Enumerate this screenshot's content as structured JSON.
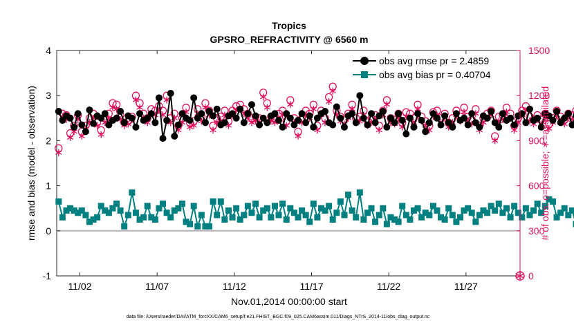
{
  "chart_data": {
    "type": "line",
    "title": "Tropics",
    "subtitle": "GPSRO_REFRACTIVITY @ 6560 m",
    "xlabel": "Nov.01,2014 00:00:00 start",
    "ylabel_left": "rmse and bias (model - observation)",
    "ylabel_right": "# of obs: o=possible; ∗=assimilated",
    "ylim_left": [
      -1,
      4
    ],
    "ylim_right": [
      0,
      1500
    ],
    "yticks_left": [
      "-1",
      "0",
      "1",
      "2",
      "3",
      "4"
    ],
    "yticks_right": [
      "0",
      "300",
      "600",
      "900",
      "1200",
      "1500"
    ],
    "xlim_days": [
      0.5,
      30.5
    ],
    "xticks": [
      {
        "day": 2,
        "label": "11/02"
      },
      {
        "day": 7,
        "label": "11/07"
      },
      {
        "day": 12,
        "label": "11/12"
      },
      {
        "day": 17,
        "label": "11/17"
      },
      {
        "day": 22,
        "label": "11/22"
      },
      {
        "day": 27,
        "label": "11/27"
      }
    ],
    "legend": [
      {
        "name": "obs avg rmse pr = 2.4859",
        "color": "#000000"
      },
      {
        "name": "obs avg bias pr = 0.40704",
        "color": "#008080"
      }
    ],
    "legend_position": "top-right",
    "colors": {
      "rmse": "#000000",
      "bias": "#008080",
      "obs": "#e0115f",
      "zero": "#b4b4b4"
    },
    "series": [
      {
        "name": "rmse",
        "values": [
          2.65,
          2.45,
          2.55,
          2.5,
          2.3,
          2.6,
          2.35,
          2.2,
          2.68,
          2.38,
          2.55,
          2.5,
          2.6,
          2.35,
          2.45,
          2.5,
          2.65,
          2.4,
          2.55,
          2.5,
          2.3,
          2.6,
          2.45,
          2.5,
          2.6,
          2.4,
          2.95,
          2.05,
          2.45,
          3.05,
          2.1,
          2.35,
          2.6,
          2.5,
          2.45,
          2.95,
          2.5,
          2.6,
          2.4,
          2.65,
          2.55,
          2.7,
          2.35,
          2.4,
          2.55,
          2.6,
          2.5,
          2.7,
          2.4,
          2.6,
          2.8,
          2.55,
          2.35,
          2.5,
          2.4,
          2.55,
          2.6,
          2.45,
          2.3,
          2.6,
          2.5,
          2.35,
          2.45,
          2.6,
          2.4,
          2.55,
          2.3,
          2.5,
          2.6,
          2.65,
          2.4,
          2.35,
          2.75,
          2.5,
          2.3,
          2.55,
          2.6,
          2.4,
          3.0,
          2.5,
          2.35,
          2.6,
          2.4,
          2.55,
          2.65,
          2.3,
          2.5,
          2.4,
          2.6,
          2.45,
          2.15,
          2.5,
          2.3,
          2.6,
          2.45,
          2.2,
          2.4,
          2.6,
          2.5,
          2.35,
          2.55,
          2.4,
          2.3,
          2.6,
          2.45,
          2.5,
          2.35,
          2.6,
          2.4,
          2.3,
          2.55,
          2.5,
          2.65,
          2.4,
          2.3,
          2.6,
          2.45,
          2.5,
          2.35,
          2.55,
          2.6,
          2.4,
          2.7,
          2.45,
          2.5,
          2.3,
          2.6,
          2.55,
          2.45,
          2.65,
          2.4,
          2.5,
          2.6,
          2.35,
          2.55,
          2.45,
          2.6,
          2.7,
          2.5,
          2.4,
          2.55,
          2.6,
          2.35,
          2.5,
          2.65,
          2.45,
          2.85,
          2.3,
          2.55,
          2.6,
          2.4,
          2.5,
          2.7,
          2.45,
          2.8,
          2.75,
          2.6,
          2.3,
          2.5,
          2.4,
          2.55,
          2.35,
          2.6,
          2.45,
          2.5,
          2.65,
          2.85,
          2.5,
          2.45,
          2.6,
          2.35,
          2.55,
          2.4,
          2.5,
          2.6,
          2.75,
          2.65,
          2.45,
          2.55,
          2.35,
          2.5,
          2.6,
          2.4,
          2.3,
          2.55,
          2.5,
          2.35,
          2.6,
          2.75,
          2.5,
          2.65,
          2.4,
          2.7,
          2.5,
          2.75,
          2.6,
          2.55,
          2.45,
          2.5,
          2.65,
          2.4,
          2.6,
          2.6,
          2.55,
          2.5,
          2.65,
          2.6,
          2.5,
          2.6,
          2.6,
          2.55,
          2.6,
          2.6,
          2.6,
          2.6,
          2.6,
          2.6,
          2.6
        ]
      },
      {
        "name": "bias",
        "values": [
          0.65,
          0.3,
          0.45,
          0.5,
          0.45,
          0.4,
          0.45,
          0.35,
          0.2,
          0.25,
          0.3,
          0.55,
          0.45,
          0.4,
          0.5,
          0.6,
          0.45,
          0.1,
          0.35,
          0.85,
          0.4,
          0.25,
          0.3,
          0.55,
          0.3,
          0.25,
          0.5,
          0.6,
          0.4,
          0.3,
          0.45,
          0.5,
          0.6,
          0.2,
          0.15,
          0.55,
          0.1,
          0.35,
          0.1,
          0.1,
          0.65,
          0.35,
          0.65,
          0.25,
          0.45,
          0.3,
          0.5,
          0.25,
          0.35,
          0.55,
          0.4,
          0.6,
          0.3,
          0.45,
          0.5,
          0.3,
          0.55,
          0.35,
          0.6,
          0.25,
          0.5,
          0.4,
          0.3,
          0.45,
          0.35,
          0.2,
          0.6,
          0.3,
          0.5,
          0.45,
          0.55,
          0.25,
          0.4,
          0.65,
          0.35,
          0.8,
          0.45,
          0.3,
          0.85,
          0.25,
          0.4,
          0.5,
          0.2,
          0.35,
          0.5,
          0.15,
          0.3,
          0.25,
          0.2,
          0.55,
          0.35,
          0.25,
          0.45,
          0.5,
          0.3,
          0.4,
          0.35,
          0.55,
          0.45,
          0.3,
          0.25,
          0.5,
          0.35,
          0.2,
          0.3,
          0.45,
          0.5,
          0.4,
          0.2,
          0.35,
          0.45,
          0.4,
          0.55,
          0.45,
          0.6,
          0.4,
          0.5,
          0.3,
          0.55,
          0.4,
          0.3,
          0.5,
          0.35,
          0.45,
          0.6,
          0.4,
          0.55,
          0.7,
          0.65,
          0.3,
          0.4,
          0.5,
          0.35,
          0.45,
          0.15,
          0.25,
          0.3,
          0.5,
          0.2,
          0.35,
          0.4,
          0.45,
          0.55,
          0.3,
          0.5,
          0.4,
          0.55,
          0.45,
          0.5,
          0.3,
          0.6,
          0.25,
          0.4,
          0.35,
          0.5,
          0.55,
          1.15,
          0.55,
          0.4,
          0.3,
          0.45,
          0.5,
          0.35,
          0.55,
          0.4,
          0.3,
          0.45,
          0.5,
          0.35,
          0.2,
          0.45,
          0.4,
          0.2,
          -0.05,
          0.3,
          0.45,
          0.35,
          0.55,
          0.3,
          0.45,
          0.55,
          0.25,
          0.5,
          0.4,
          0.35,
          0.45,
          0.55,
          0.3,
          0.4,
          0.5,
          0.35,
          0.45,
          0.35,
          0.35,
          0.3,
          0.4,
          0.35,
          0.4,
          0.35,
          0.3,
          0.35,
          0.4,
          0.35,
          0.3,
          0.35,
          0.3
        ]
      },
      {
        "name": "possible",
        "values": [
          850,
          1080,
          1070,
          950,
          1000,
          1070,
          960,
          1000,
          1050,
          1080,
          1020,
          970,
          1050,
          1080,
          1150,
          1140,
          1070,
          1020,
          1030,
          1060,
          1200,
          1150,
          1080,
          1050,
          1110,
          1100,
          1130,
          1100,
          1200,
          1050,
          1080,
          1000,
          1050,
          1120,
          1020,
          1030,
          1110,
          1060,
          1150,
          1100,
          1000,
          1050,
          1060,
          1100,
          1030,
          1100,
          1130,
          1140,
          1110,
          1080,
          1050,
          1060,
          1050,
          1220,
          1150,
          1060,
          1050,
          1080,
          1100,
          1030,
          1170,
          1050,
          960,
          1050,
          1100,
          1080,
          1140,
          1000,
          1100,
          1050,
          1190,
          1260,
          1100,
          1060,
          1040,
          1080,
          1140,
          1050,
          1060,
          1100,
          1030,
          1050,
          1070,
          1000,
          1100,
          1170,
          1050,
          1040,
          1080,
          1020,
          1090,
          1080,
          1050,
          1140,
          1060,
          1030,
          1000,
          1090,
          1100,
          1050,
          1080,
          1020,
          1050,
          1100,
          1060,
          1120,
          1060,
          1040,
          1110,
          1000,
          1050,
          1080,
          1100,
          930,
          1060,
          1070,
          1120,
          1080,
          1000,
          1050,
          1100,
          1130,
          1060,
          1040,
          1070,
          1040,
          1080,
          1010,
          1050,
          1100,
          1060,
          1040,
          1080,
          1070,
          1100,
          1050,
          1050,
          1040,
          1120,
          1060,
          1080,
          1100,
          1050,
          1050,
          1040,
          1080,
          1100,
          1060,
          1050,
          1020,
          1100,
          1140,
          1200,
          1280,
          1060,
          1080,
          1050,
          1090,
          1100,
          1150,
          1050,
          1180,
          1040,
          1080,
          1050,
          1030,
          1110,
          1020,
          1120,
          1070,
          1090,
          1100,
          1030,
          1050,
          1080,
          1040,
          1060,
          1020,
          1070,
          1100,
          1050,
          1080,
          1050,
          1020,
          1130,
          1100,
          1050,
          1070,
          1090,
          1040,
          1100,
          1130,
          1050,
          1010,
          1060,
          1090,
          1100,
          1130,
          1120,
          1040,
          1050,
          1030,
          1200,
          1180,
          1050,
          1030,
          1100,
          1140,
          1050,
          1060,
          1070,
          1030,
          1080,
          1100
        ]
      },
      {
        "name": "assimilated",
        "values": [
          820,
          1060,
          1040,
          920,
          960,
          1040,
          930,
          980,
          1020,
          1050,
          1000,
          940,
          1020,
          1050,
          1120,
          1110,
          1040,
          1000,
          1010,
          1040,
          1170,
          1120,
          1050,
          1020,
          1080,
          1070,
          1100,
          1070,
          1170,
          1020,
          1050,
          970,
          1020,
          1090,
          990,
          1000,
          1080,
          1030,
          1120,
          1070,
          970,
          1020,
          1030,
          1070,
          1000,
          1070,
          1100,
          1110,
          1080,
          1050,
          1020,
          1030,
          1020,
          1190,
          1120,
          1030,
          1020,
          1050,
          1070,
          1000,
          1140,
          1020,
          930,
          1020,
          1070,
          1050,
          1110,
          970,
          1070,
          1020,
          1160,
          1230,
          1070,
          1030,
          1010,
          1050,
          1110,
          1020,
          1030,
          1070,
          1000,
          1020,
          1040,
          970,
          1070,
          1140,
          1020,
          1010,
          1050,
          990,
          1060,
          1050,
          1020,
          1110,
          1030,
          1000,
          970,
          1060,
          1070,
          1020,
          1050,
          990,
          1020,
          1070,
          1030,
          1090,
          1030,
          1010,
          1080,
          970,
          1020,
          1050,
          1070,
          900,
          1030,
          1040,
          1090,
          1050,
          970,
          1020,
          1070,
          1100,
          1030,
          1010,
          1040,
          1010,
          1050,
          980,
          1020,
          1070,
          1030,
          1010,
          1050,
          1040,
          1070,
          1020,
          1020,
          1010,
          1090,
          1030,
          1050,
          1070,
          1020,
          1020,
          1010,
          1050,
          1070,
          1030,
          1020,
          990,
          1070,
          1110,
          1170,
          1250,
          1030,
          1050,
          1020,
          1060,
          1070,
          1120,
          1020,
          1150,
          1010,
          1050,
          1020,
          1000,
          1080,
          990,
          1090,
          1040,
          1060,
          1070,
          1000,
          1020,
          1050,
          1010,
          1030,
          990,
          1040,
          1070,
          1020,
          1050,
          1020,
          990,
          1100,
          1070,
          1020,
          1040,
          1060,
          1010,
          1070,
          1100,
          1020,
          980,
          1030,
          1060,
          1070,
          1100,
          1090,
          1010,
          1020,
          1000,
          1170,
          1150,
          1020,
          1000,
          1070,
          1110,
          1020,
          1030,
          1040,
          1000,
          1050,
          1070
        ]
      }
    ],
    "footer": "data file: /Users/raeder/DAI/ATM_forcXX/CAM6_setup/f.e21.FHIST_BGC.f09_025.CAM6assim.011/Diags_NTrS_2014-11/obs_diag_output.nc"
  }
}
